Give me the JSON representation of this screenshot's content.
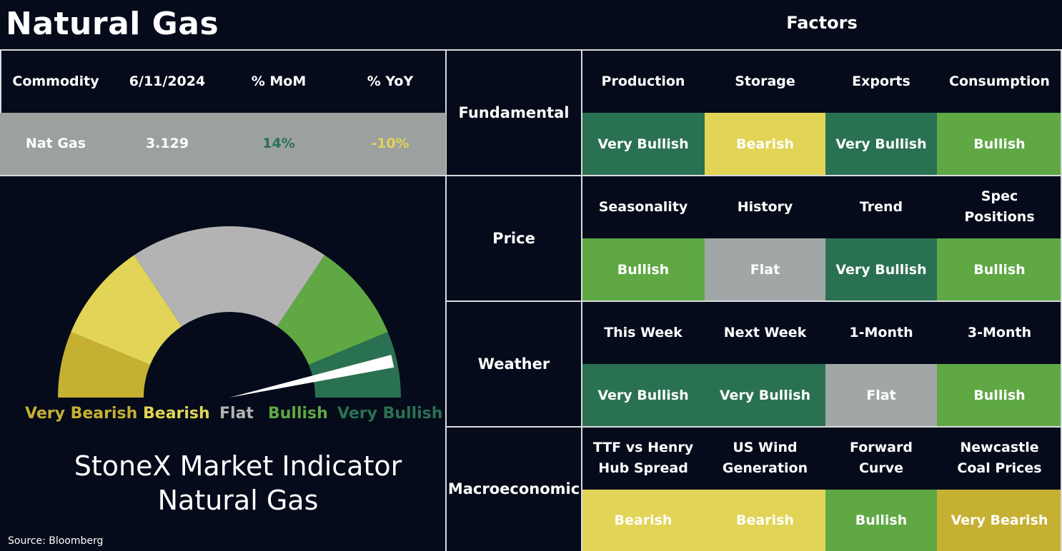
{
  "title": "Natural Gas",
  "factors_title": "Factors",
  "colors": {
    "background": "#050b1a",
    "very_bullish": "#2a7152",
    "bullish": "#5fa844",
    "flat": "#a1a7a7",
    "bearish": "#e1d456",
    "very_bearish": "#c6b032",
    "summary_row": "#9ca1a0"
  },
  "commodity_table": {
    "headers": [
      "Commodity",
      "6/11/2024",
      "% MoM",
      "% YoY"
    ],
    "row": {
      "name": "Nat Gas",
      "price": "3.129",
      "mom": "14%",
      "yoy": "-10%",
      "mom_color": "#2a7152",
      "yoy_color": "#e1d456"
    }
  },
  "factor_groups": [
    {
      "category": "Fundamental",
      "factors": [
        {
          "name": "Production",
          "rating": "Very Bullish"
        },
        {
          "name": "Storage",
          "rating": "Bearish"
        },
        {
          "name": "Exports",
          "rating": "Very Bullish"
        },
        {
          "name": "Consumption",
          "rating": "Bullish"
        }
      ]
    },
    {
      "category": "Price",
      "factors": [
        {
          "name": "Seasonality",
          "rating": "Bullish"
        },
        {
          "name": "History",
          "rating": "Flat"
        },
        {
          "name": "Trend",
          "rating": "Very Bullish"
        },
        {
          "name": "Spec Positions",
          "rating": "Bullish"
        }
      ]
    },
    {
      "category": "Weather",
      "factors": [
        {
          "name": "This Week",
          "rating": "Very Bullish"
        },
        {
          "name": "Next Week",
          "rating": "Very Bullish"
        },
        {
          "name": "1-Month",
          "rating": "Flat"
        },
        {
          "name": "3-Month",
          "rating": "Bullish"
        }
      ]
    },
    {
      "category": "Macroeconomic",
      "factors": [
        {
          "name": "TTF vs Henry Hub Spread",
          "rating": "Bearish"
        },
        {
          "name": "US Wind Generation",
          "rating": "Bearish"
        },
        {
          "name": "Forward Curve",
          "rating": "Bullish"
        },
        {
          "name": "Newcastle Coal Prices",
          "rating": "Very Bearish"
        }
      ]
    }
  ],
  "chart_data": {
    "type": "gauge",
    "segments": [
      {
        "label": "Very Bearish",
        "weight": 1,
        "color": "#c6b032"
      },
      {
        "label": "Bearish",
        "weight": 1.5,
        "color": "#e1d456"
      },
      {
        "label": "Flat",
        "weight": 3,
        "color": "#b3b3b3"
      },
      {
        "label": "Bullish",
        "weight": 1.5,
        "color": "#5fa844"
      },
      {
        "label": "Very Bullish",
        "weight": 1,
        "color": "#2a7152"
      }
    ],
    "labels": [
      {
        "text": "Very Bearish",
        "color": "#c6b032"
      },
      {
        "text": "Bearish",
        "color": "#e1d456"
      },
      {
        "text": "Flat",
        "color": "#b3b3b3"
      },
      {
        "text": "Bullish",
        "color": "#5fa844"
      },
      {
        "text": "Very Bullish",
        "color": "#2a7152"
      }
    ],
    "needle_fraction": 0.93
  },
  "indicator_title": [
    "StoneX Market Indicator",
    "Natural Gas"
  ],
  "source": "Source: Bloomberg"
}
